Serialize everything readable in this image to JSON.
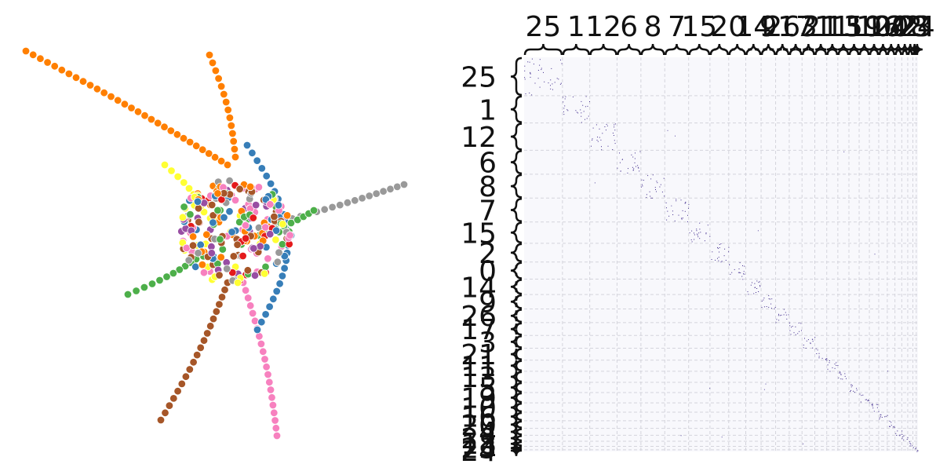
{
  "matrix": {
    "column_labels": [
      "25",
      "1",
      "12",
      "6",
      "8",
      "7",
      "15",
      "2",
      "0",
      "14",
      "9",
      "26",
      "17",
      "3",
      "21",
      "11",
      "13",
      "5",
      "19",
      "10",
      "16",
      "20",
      "4",
      "22",
      "18",
      "23",
      "24"
    ],
    "row_labels": [
      "25",
      "1",
      "12",
      "6",
      "8",
      "7",
      "15",
      "2",
      "0",
      "14",
      "9",
      "26",
      "17",
      "3",
      "21",
      "11",
      "13",
      "5",
      "19",
      "10",
      "16",
      "20",
      "4",
      "22",
      "18",
      "23",
      "24"
    ]
  }
}
